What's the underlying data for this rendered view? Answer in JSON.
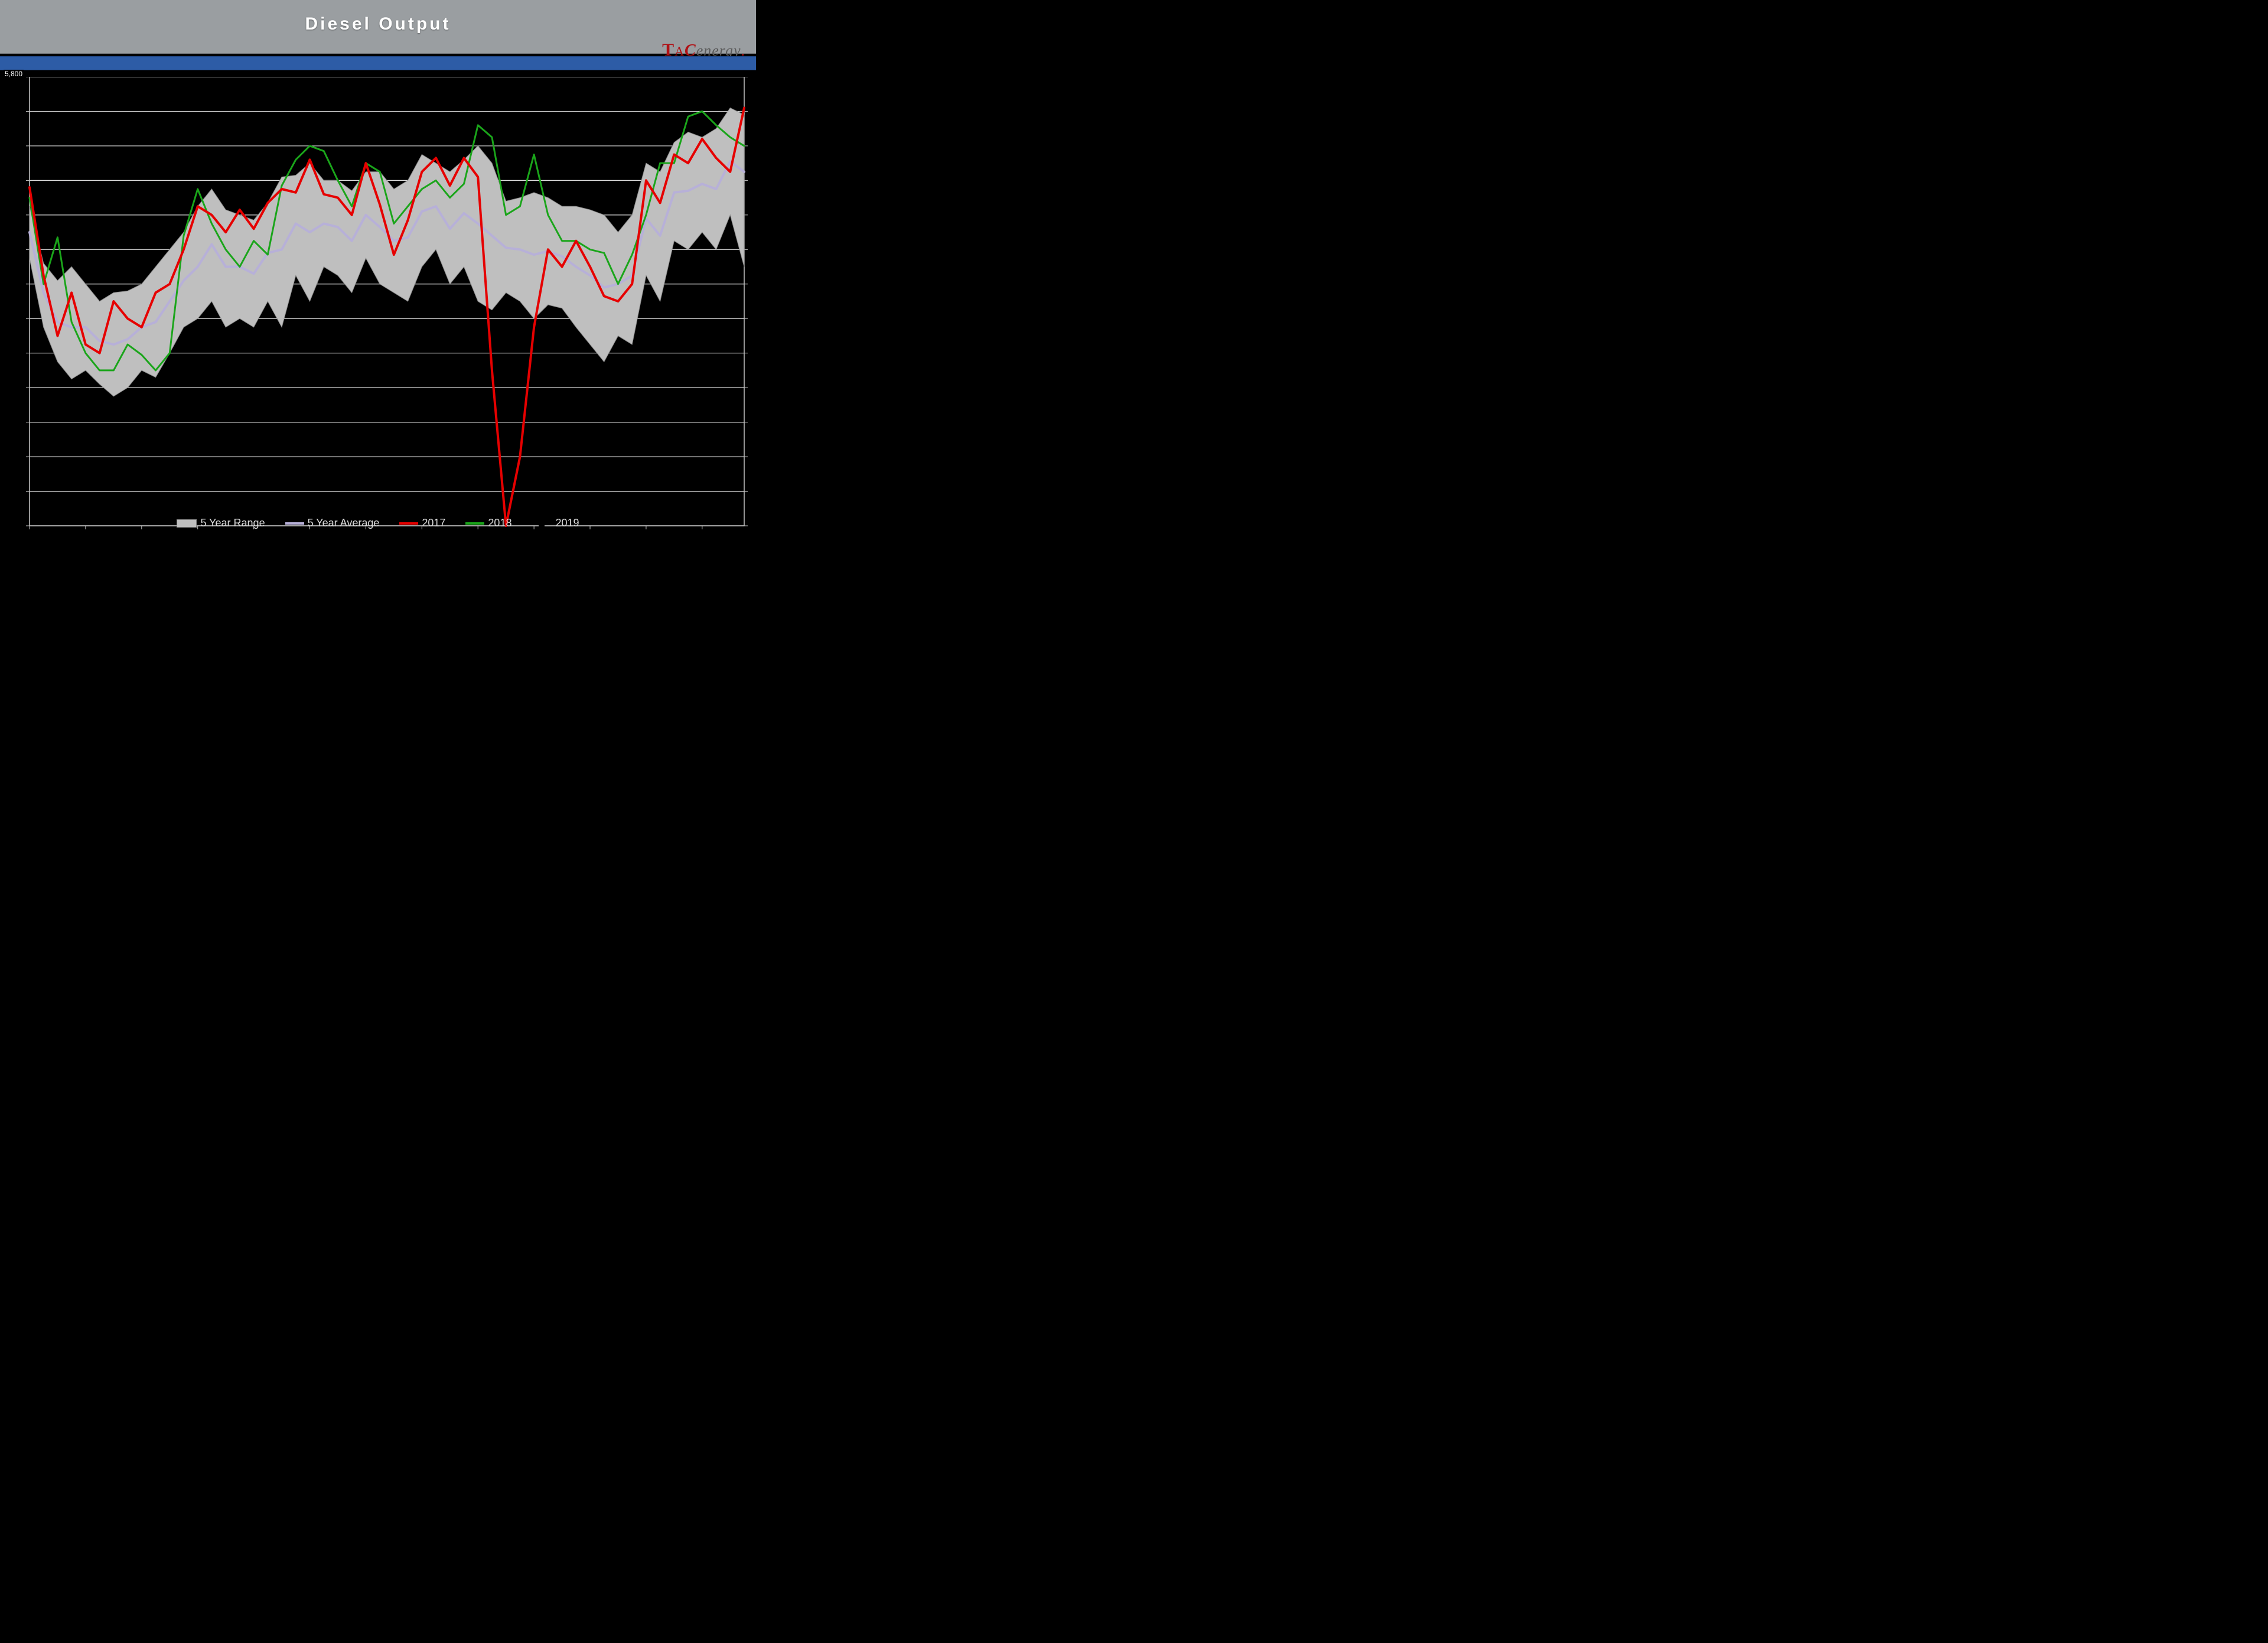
{
  "title": "Diesel  Output",
  "logo": {
    "t": "T",
    "a": "A",
    "c": "C",
    "rest": "energy",
    "dot": "."
  },
  "y_top_label": "5,800",
  "chart": {
    "type": "line-with-band",
    "background_color": "#000000",
    "grid_color": "#dcdcdc",
    "axis_color": "#c8c8c8",
    "n_points": 52,
    "ylim": [
      3200,
      5800
    ],
    "ytick_step": 200,
    "xtick_step": 4,
    "range_fill": "#bfbfbf",
    "range_stroke": "#8c8c8c",
    "series": {
      "range_high": [
        5050,
        4720,
        4620,
        4700,
        4600,
        4500,
        4550,
        4560,
        4600,
        4700,
        4800,
        4900,
        5050,
        5150,
        5030,
        5000,
        4970,
        5070,
        5220,
        5230,
        5300,
        5200,
        5200,
        5140,
        5250,
        5250,
        5150,
        5200,
        5350,
        5300,
        5250,
        5320,
        5400,
        5300,
        5080,
        5100,
        5130,
        5100,
        5050,
        5050,
        5030,
        5000,
        4900,
        5000,
        5300,
        5250,
        5420,
        5480,
        5450,
        5500,
        5620,
        5580
      ],
      "range_low": [
        4750,
        4350,
        4150,
        4050,
        4100,
        4020,
        3950,
        4000,
        4100,
        4060,
        4200,
        4350,
        4400,
        4500,
        4350,
        4400,
        4350,
        4500,
        4350,
        4650,
        4500,
        4700,
        4650,
        4550,
        4750,
        4600,
        4550,
        4500,
        4700,
        4800,
        4600,
        4700,
        4500,
        4450,
        4550,
        4500,
        4400,
        4480,
        4460,
        4350,
        4250,
        4150,
        4300,
        4250,
        4650,
        4500,
        4850,
        4800,
        4900,
        4800,
        5000,
        4700
      ],
      "avg": [
        4900,
        4550,
        4380,
        4350,
        4350,
        4270,
        4250,
        4280,
        4350,
        4380,
        4500,
        4620,
        4700,
        4830,
        4700,
        4700,
        4660,
        4780,
        4800,
        4950,
        4900,
        4950,
        4930,
        4850,
        5000,
        4930,
        4850,
        4870,
        5020,
        5050,
        4920,
        5010,
        4950,
        4880,
        4810,
        4800,
        4770,
        4790,
        4760,
        4700,
        4650,
        4580,
        4600,
        4650,
        4980,
        4880,
        5130,
        5140,
        5180,
        5150,
        5310,
        5250
      ],
      "y2017": [
        5160,
        4650,
        4300,
        4550,
        4250,
        4200,
        4500,
        4400,
        4350,
        4550,
        4600,
        4800,
        5050,
        5000,
        4900,
        5030,
        4920,
        5070,
        5150,
        5130,
        5320,
        5120,
        5100,
        5000,
        5300,
        5060,
        4770,
        4970,
        5250,
        5330,
        5170,
        5330,
        5220,
        4100,
        3200,
        3600,
        4350,
        4800,
        4700,
        4850,
        4700,
        4530,
        4500,
        4600,
        5200,
        5070,
        5350,
        5300,
        5440,
        5330,
        5250,
        5620
      ],
      "y2018": [
        5100,
        4600,
        4870,
        4380,
        4200,
        4100,
        4100,
        4250,
        4190,
        4100,
        4200,
        4880,
        5150,
        4950,
        4800,
        4700,
        4850,
        4770,
        5170,
        5320,
        5400,
        5370,
        5200,
        5050,
        5300,
        5250,
        4950,
        5050,
        5150,
        5200,
        5100,
        5180,
        5520,
        5450,
        5000,
        5050,
        5350,
        5000,
        4850,
        4850,
        4800,
        4780,
        4600,
        4770,
        5000,
        5300,
        5300,
        5570,
        5600,
        5520,
        5450,
        5400
      ],
      "y2019": []
    },
    "colors": {
      "avg": "#b7b0d8",
      "y2017": "#e60000",
      "y2018": "#1aa51a",
      "y2019": "#000000"
    },
    "line_widths": {
      "avg": 4,
      "y2017": 4,
      "y2018": 3,
      "y2019": 3
    },
    "title_fontsize": 30,
    "legend_fontsize": 18
  },
  "legend": {
    "range": "5 Year Range",
    "avg": "5 Year Average",
    "y2017": "2017",
    "y2018": "2018",
    "y2019": "2019"
  }
}
